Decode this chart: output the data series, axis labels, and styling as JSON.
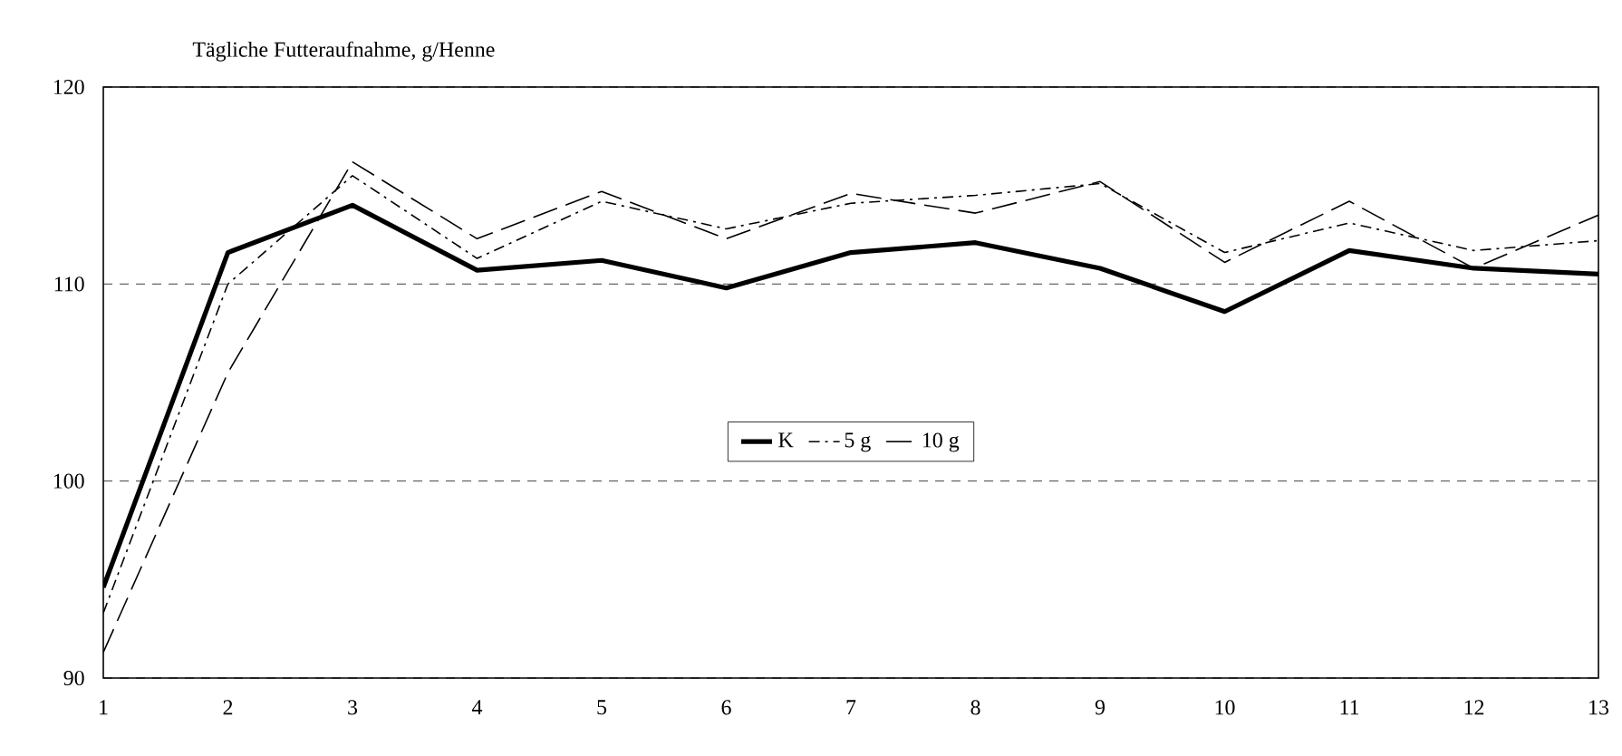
{
  "chart_data": {
    "type": "line",
    "ylabel": "Tägliche Futteraufnahme, g/Henne",
    "x": [
      1,
      2,
      3,
      4,
      5,
      6,
      7,
      8,
      9,
      10,
      11,
      12,
      13
    ],
    "series": [
      {
        "name": "K",
        "color": "#000000",
        "line_style": "solid",
        "values": [
          94.6,
          111.6,
          114.0,
          110.7,
          111.2,
          109.8,
          111.6,
          112.1,
          110.8,
          108.6,
          111.7,
          110.8,
          110.5
        ]
      },
      {
        "name": "5 g",
        "color": "#000000",
        "line_style": "dashed",
        "values": [
          93.3,
          110.0,
          115.5,
          111.3,
          114.2,
          112.8,
          114.1,
          114.5,
          115.1,
          111.6,
          113.1,
          111.7,
          112.2
        ]
      },
      {
        "name": "10 g",
        "color": "#000000",
        "line_style": "dashed",
        "values": [
          91.3,
          105.5,
          116.2,
          112.3,
          114.7,
          112.3,
          114.6,
          113.6,
          115.2,
          111.1,
          114.2,
          110.8,
          113.5
        ]
      }
    ],
    "xlim": [
      1,
      13
    ],
    "ylim": [
      90,
      120
    ],
    "xticks": [
      1,
      2,
      3,
      4,
      5,
      6,
      7,
      8,
      9,
      10,
      11,
      12,
      13
    ],
    "yticks": [
      90,
      100,
      110,
      120
    ],
    "grid": "y",
    "legend": "center",
    "marker": "none"
  }
}
